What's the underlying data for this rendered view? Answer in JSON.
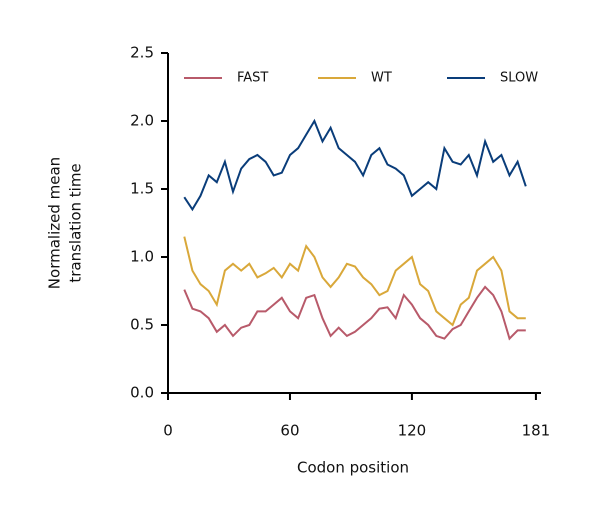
{
  "chart_data": {
    "type": "line",
    "xlabel": "Codon position",
    "ylabel": [
      "Normalized mean",
      "translation time"
    ],
    "x": [
      8,
      12,
      16,
      20,
      24,
      28,
      32,
      36,
      40,
      44,
      48,
      52,
      56,
      60,
      64,
      68,
      72,
      76,
      80,
      84,
      88,
      92,
      96,
      100,
      104,
      108,
      112,
      116,
      120,
      124,
      128,
      132,
      136,
      140,
      144,
      148,
      152,
      156,
      160,
      164,
      168,
      172,
      176
    ],
    "series": [
      {
        "name": "FAST",
        "color": "#b85a6a",
        "values": [
          0.76,
          0.62,
          0.6,
          0.55,
          0.45,
          0.5,
          0.42,
          0.48,
          0.5,
          0.6,
          0.6,
          0.65,
          0.7,
          0.6,
          0.55,
          0.7,
          0.72,
          0.55,
          0.42,
          0.48,
          0.42,
          0.45,
          0.5,
          0.55,
          0.62,
          0.63,
          0.55,
          0.72,
          0.65,
          0.55,
          0.5,
          0.42,
          0.4,
          0.47,
          0.5,
          0.6,
          0.7,
          0.78,
          0.72,
          0.6,
          0.4,
          0.46,
          0.46
        ]
      },
      {
        "name": "WT",
        "color": "#d9a83a",
        "values": [
          1.15,
          0.9,
          0.8,
          0.75,
          0.65,
          0.9,
          0.95,
          0.9,
          0.95,
          0.85,
          0.88,
          0.92,
          0.85,
          0.95,
          0.9,
          1.08,
          1.0,
          0.85,
          0.78,
          0.85,
          0.95,
          0.93,
          0.85,
          0.8,
          0.72,
          0.75,
          0.9,
          0.95,
          1.0,
          0.8,
          0.75,
          0.6,
          0.55,
          0.5,
          0.65,
          0.7,
          0.9,
          0.95,
          1.0,
          0.9,
          0.6,
          0.55,
          0.55
        ]
      },
      {
        "name": "SLOW",
        "color": "#0a3d7a",
        "values": [
          1.44,
          1.35,
          1.45,
          1.6,
          1.55,
          1.7,
          1.48,
          1.65,
          1.72,
          1.75,
          1.7,
          1.6,
          1.62,
          1.75,
          1.8,
          1.9,
          2.0,
          1.85,
          1.95,
          1.8,
          1.75,
          1.7,
          1.6,
          1.75,
          1.8,
          1.68,
          1.65,
          1.6,
          1.45,
          1.5,
          1.55,
          1.5,
          1.8,
          1.7,
          1.68,
          1.75,
          1.6,
          1.85,
          1.7,
          1.75,
          1.6,
          1.7,
          1.52
        ]
      }
    ],
    "xlim": [
      0,
      183.5
    ],
    "xticks": [
      0,
      60,
      120,
      181
    ],
    "ylim": [
      0,
      2.5
    ],
    "yticks": [
      {
        "value": 0,
        "label": "0.0"
      },
      0.5,
      {
        "value": 1,
        "label": "1.0"
      },
      1.5,
      {
        "value": 2,
        "label": "2.0"
      },
      2.5
    ],
    "legend": "top"
  }
}
